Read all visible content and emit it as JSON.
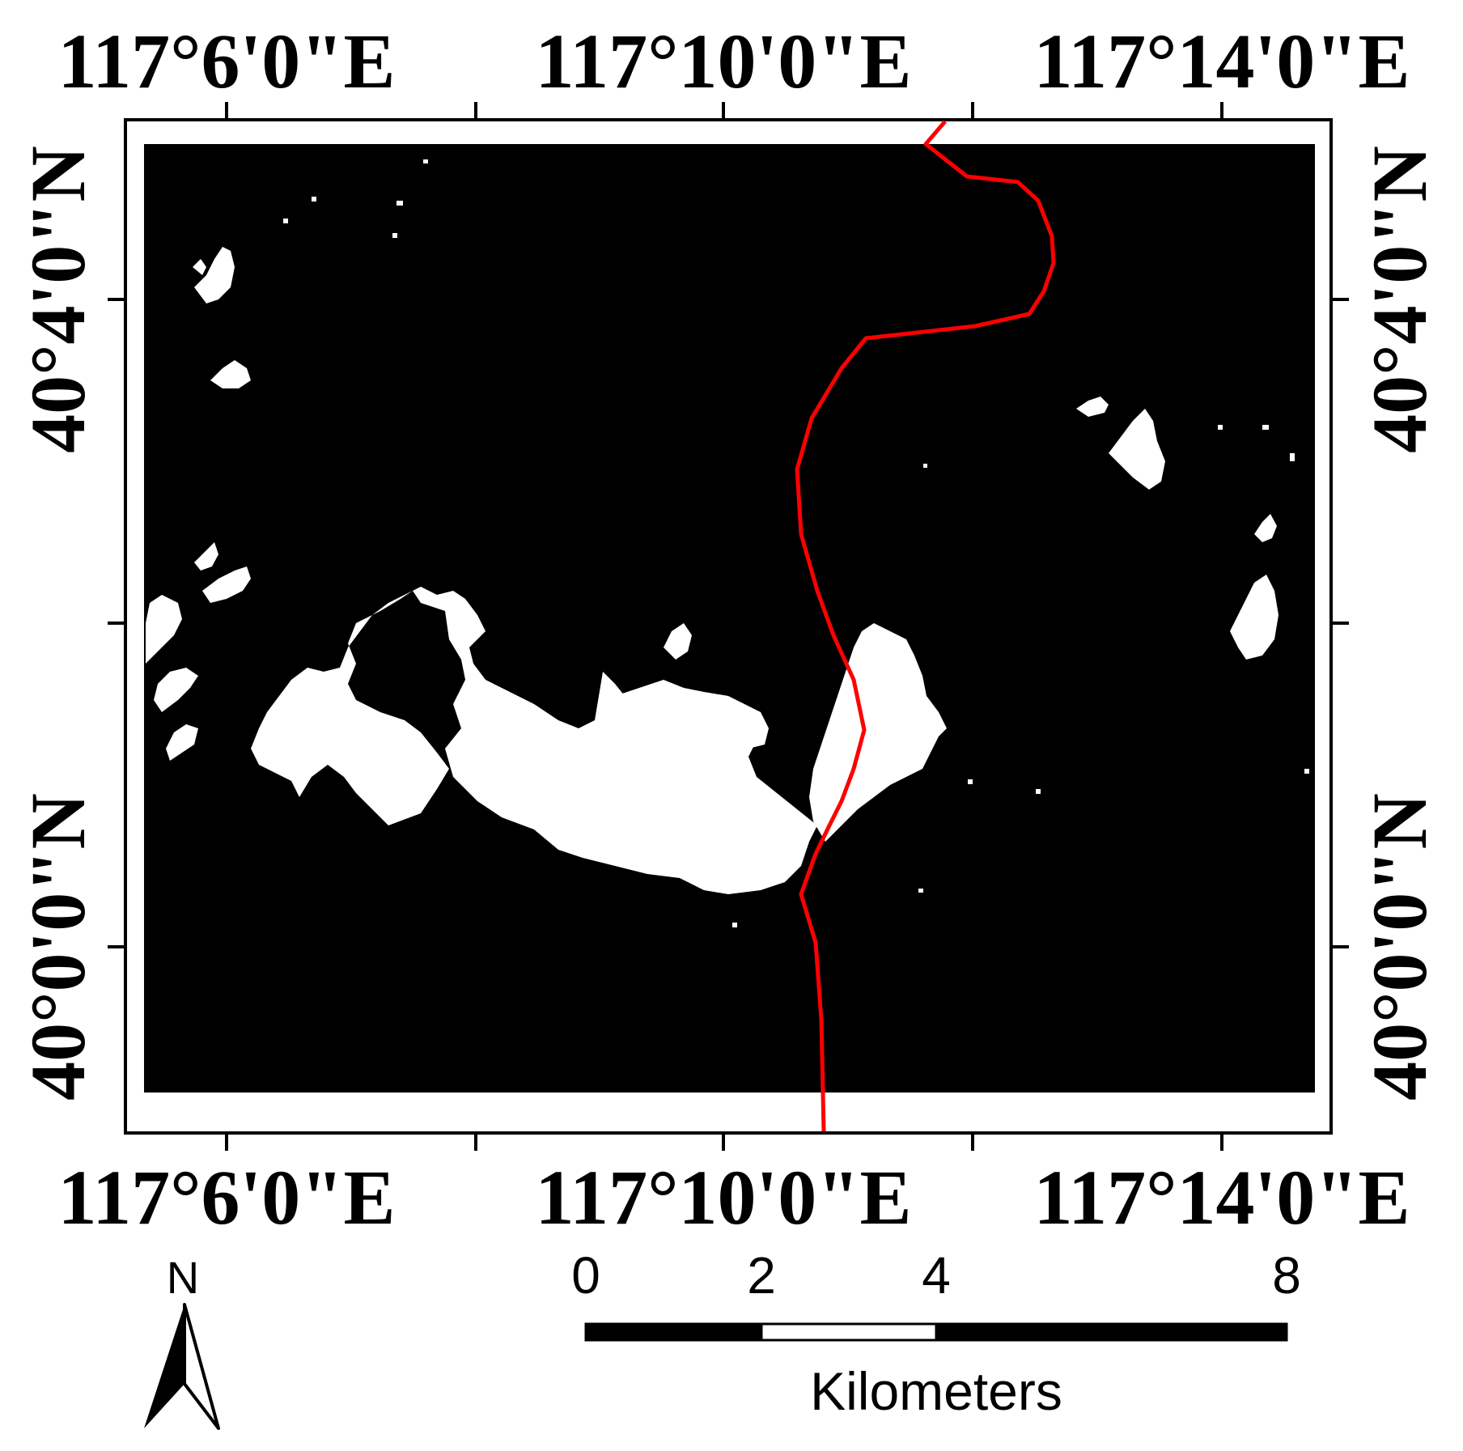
{
  "map": {
    "colors": {
      "background": "#000000",
      "feature": "#ffffff",
      "boundary_line": "#ff0000",
      "frame": "#000000"
    },
    "top_labels": [
      "117°6'0\"E",
      "117°10'0\"E",
      "117°14'0\"E"
    ],
    "bottom_labels": [
      "117°6'0\"E",
      "117°10'0\"E",
      "117°14'0\"E"
    ],
    "left_labels": [
      "40°4'0\"N",
      "40°0'0\"N"
    ],
    "right_labels": [
      "40°4'0\"N",
      "40°0'0\"N"
    ],
    "feature_icon": "white-patch-shapes",
    "boundary_icon": "red-polyline"
  },
  "north_arrow": {
    "label": "N",
    "icon": "north-arrow-icon"
  },
  "scale_bar": {
    "ticks": [
      "0",
      "2",
      "4",
      "8"
    ],
    "unit_label": "Kilometers"
  }
}
